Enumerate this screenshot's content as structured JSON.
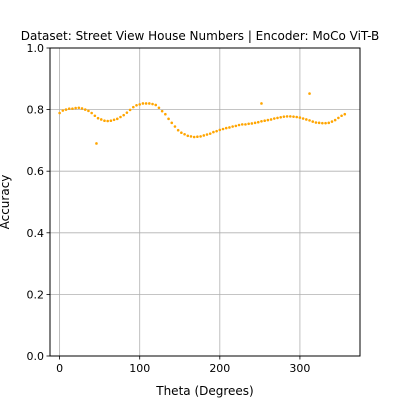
{
  "chart_data": {
    "type": "scatter",
    "title": "Dataset: Street View House Numbers | Encoder: MoCo ViT-B",
    "xlabel": "Theta (Degrees)",
    "ylabel": "Accuracy",
    "xlim": [
      -12,
      375
    ],
    "ylim": [
      0.0,
      1.0
    ],
    "xticks": [
      0,
      100,
      200,
      300
    ],
    "xtick_labels": [
      "0",
      "100",
      "200",
      "300"
    ],
    "yticks": [
      0.0,
      0.2,
      0.4,
      0.6,
      0.8,
      1.0
    ],
    "ytick_labels": [
      "0.0",
      "0.2",
      "0.4",
      "0.6",
      "0.8",
      "1.0"
    ],
    "grid": true,
    "marker_color": "#ffa500",
    "series": [
      {
        "x": [
          0,
          4,
          8,
          12,
          16,
          20,
          24,
          28,
          32,
          36,
          40,
          44,
          48,
          52,
          56,
          60,
          64,
          68,
          72,
          76,
          80,
          84,
          88,
          92,
          96,
          100,
          104,
          108,
          112,
          116,
          120,
          124,
          128,
          132,
          136,
          140,
          144,
          148,
          152,
          156,
          160,
          164,
          168,
          172,
          176,
          180,
          184,
          188,
          192,
          196,
          200,
          204,
          208,
          212,
          216,
          220,
          224,
          228,
          232,
          236,
          240,
          244,
          248,
          252,
          256,
          260,
          264,
          268,
          272,
          276,
          280,
          284,
          288,
          292,
          296,
          300,
          304,
          308,
          312,
          316,
          320,
          324,
          328,
          332,
          336,
          340,
          344,
          348,
          352,
          356,
          46,
          252,
          312
        ],
        "y": [
          0.789,
          0.797,
          0.8,
          0.803,
          0.803,
          0.805,
          0.806,
          0.804,
          0.8,
          0.796,
          0.789,
          0.78,
          0.772,
          0.768,
          0.764,
          0.763,
          0.764,
          0.767,
          0.77,
          0.776,
          0.782,
          0.79,
          0.799,
          0.808,
          0.814,
          0.817,
          0.82,
          0.82,
          0.82,
          0.818,
          0.815,
          0.806,
          0.795,
          0.785,
          0.77,
          0.757,
          0.745,
          0.733,
          0.725,
          0.72,
          0.715,
          0.713,
          0.711,
          0.712,
          0.713,
          0.716,
          0.719,
          0.722,
          0.727,
          0.73,
          0.734,
          0.737,
          0.74,
          0.742,
          0.745,
          0.747,
          0.75,
          0.752,
          0.752,
          0.754,
          0.755,
          0.757,
          0.759,
          0.762,
          0.764,
          0.766,
          0.768,
          0.771,
          0.773,
          0.775,
          0.777,
          0.778,
          0.778,
          0.777,
          0.776,
          0.774,
          0.771,
          0.768,
          0.765,
          0.761,
          0.758,
          0.757,
          0.756,
          0.756,
          0.757,
          0.761,
          0.766,
          0.773,
          0.78,
          0.785,
          0.69,
          0.82,
          0.852
        ]
      }
    ]
  }
}
